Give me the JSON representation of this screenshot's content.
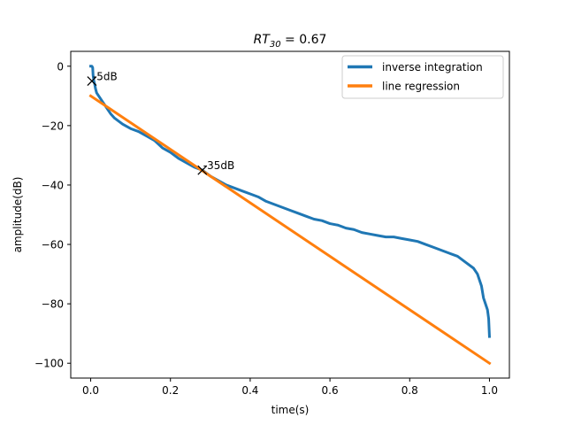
{
  "chart_data": {
    "type": "line",
    "title_main": "RT",
    "title_sub": "30",
    "title_rest": " = 0.67",
    "xlabel": "time(s)",
    "ylabel": "amplitude(dB)",
    "xlim": [
      -0.05,
      1.05
    ],
    "ylim": [
      -105,
      5
    ],
    "xticks": [
      0.0,
      0.2,
      0.4,
      0.6,
      0.8,
      1.0
    ],
    "xtick_labels": [
      "0.0",
      "0.2",
      "0.4",
      "0.6",
      "0.8",
      "1.0"
    ],
    "yticks": [
      0,
      -20,
      -40,
      -60,
      -80,
      -100
    ],
    "ytick_labels": [
      "0",
      "−20",
      "−40",
      "−60",
      "−80",
      "−100"
    ],
    "grid": false,
    "legend_position": "top-right",
    "series": [
      {
        "name": "inverse integration",
        "color": "#1f77b4",
        "x": [
          0.0,
          0.003,
          0.005,
          0.006,
          0.008,
          0.01,
          0.012,
          0.015,
          0.02,
          0.03,
          0.04,
          0.05,
          0.06,
          0.07,
          0.08,
          0.1,
          0.12,
          0.14,
          0.16,
          0.18,
          0.2,
          0.22,
          0.24,
          0.26,
          0.28,
          0.3,
          0.32,
          0.34,
          0.36,
          0.38,
          0.4,
          0.42,
          0.44,
          0.46,
          0.48,
          0.5,
          0.52,
          0.54,
          0.56,
          0.58,
          0.6,
          0.62,
          0.64,
          0.66,
          0.68,
          0.7,
          0.72,
          0.74,
          0.76,
          0.78,
          0.8,
          0.82,
          0.84,
          0.86,
          0.88,
          0.9,
          0.92,
          0.94,
          0.96,
          0.97,
          0.98,
          0.985,
          0.99,
          0.995,
          0.998,
          1.0
        ],
        "y": [
          0,
          0,
          -0.5,
          -3,
          -5,
          -6,
          -7.5,
          -9,
          -10,
          -12,
          -14,
          -16,
          -17.5,
          -18.5,
          -19.5,
          -21,
          -22,
          -23.5,
          -25,
          -27.5,
          -29,
          -31,
          -32.5,
          -34,
          -35,
          -37,
          -38.5,
          -40,
          -41,
          -42,
          -43,
          -44,
          -45.5,
          -46.5,
          -47.5,
          -48.5,
          -49.5,
          -50.5,
          -51.5,
          -52,
          -53,
          -53.5,
          -54.5,
          -55,
          -56,
          -56.5,
          -57,
          -57.5,
          -57.5,
          -58,
          -58.5,
          -59,
          -60,
          -61,
          -62,
          -63,
          -64,
          -66,
          -68,
          -70,
          -74,
          -78,
          -80,
          -82,
          -85,
          -91
        ]
      },
      {
        "name": "line regression",
        "color": "#ff7f0e",
        "x": [
          0.0,
          1.0
        ],
        "y": [
          -10,
          -100
        ]
      }
    ],
    "markers": [
      {
        "label": "-5dB",
        "x": 0.003,
        "y": -5
      },
      {
        "label": "-35dB",
        "x": 0.28,
        "y": -35
      }
    ]
  }
}
